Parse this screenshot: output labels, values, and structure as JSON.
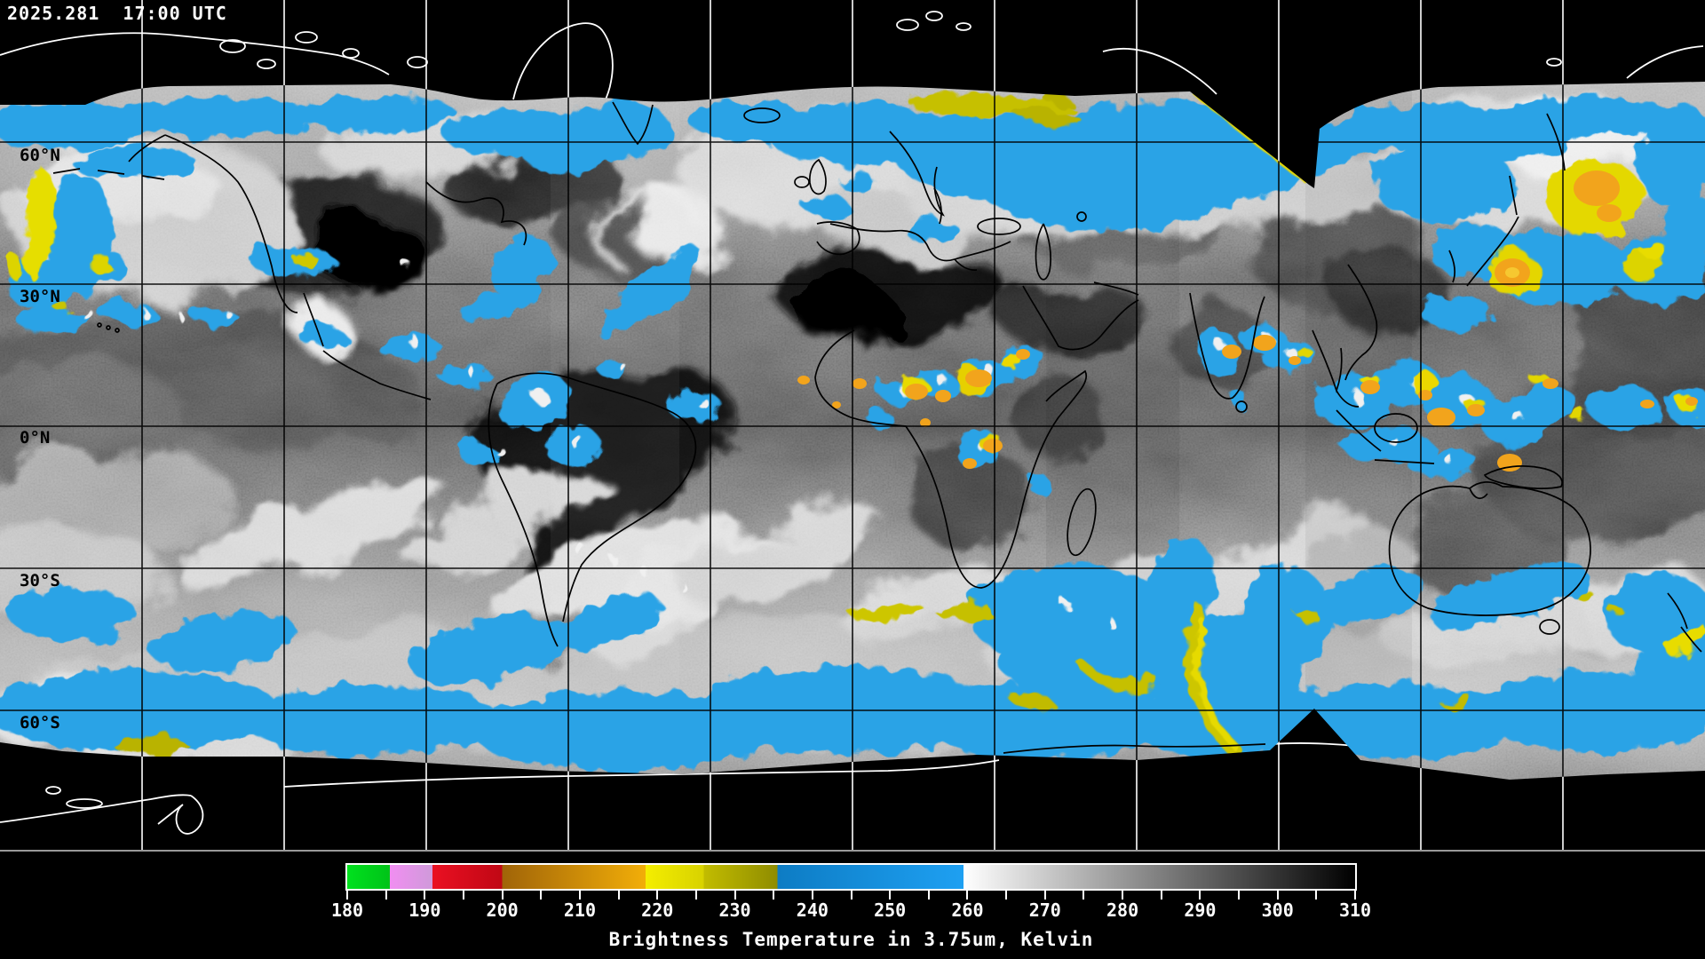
{
  "header": {
    "timestamp": "2025.281  17:00 UTC"
  },
  "map": {
    "lat_labels": [
      "60°N",
      "30°N",
      "0°N",
      "30°S",
      "60°S"
    ],
    "colors": {
      "cold_cloud_blue": "#2ba3e6",
      "colder_yellow": "#dcd400",
      "coldest_orange": "#f2a41c",
      "gridline_on_data": "#000000",
      "gridline_on_void": "#ffffff",
      "coastline_on_data": "#000000",
      "coastline_on_void": "#ffffff"
    }
  },
  "colorbar": {
    "min": 180,
    "max": 310,
    "minor_tick_step": 5,
    "tick_labels": [
      "180",
      "190",
      "200",
      "210",
      "220",
      "230",
      "240",
      "250",
      "260",
      "270",
      "280",
      "290",
      "300",
      "310"
    ],
    "caption": "Brightness Temperature in 3.75um, Kelvin",
    "segments": [
      {
        "from": 180.0,
        "to": 185.5,
        "color_start": "#00e11e",
        "color_end": "#00c318"
      },
      {
        "from": 185.5,
        "to": 191.0,
        "color_start": "#f18ef1",
        "color_end": "#cf9ada"
      },
      {
        "from": 191.0,
        "to": 200.0,
        "color_start": "#ea1022",
        "color_end": "#c00714"
      },
      {
        "from": 200.0,
        "to": 218.5,
        "color_start": "#a06408",
        "color_end": "#f2ae08"
      },
      {
        "from": 218.5,
        "to": 226.0,
        "color_start": "#f4ee00",
        "color_end": "#d8d200"
      },
      {
        "from": 226.0,
        "to": 235.5,
        "color_start": "#c2bc00",
        "color_end": "#8f8c00"
      },
      {
        "from": 235.5,
        "to": 259.5,
        "color_start": "#0d7cc4",
        "color_end": "#1ea0f2"
      },
      {
        "from": 259.5,
        "to": 310.0,
        "color_start": "#ffffff",
        "color_end": "#000000"
      }
    ]
  }
}
